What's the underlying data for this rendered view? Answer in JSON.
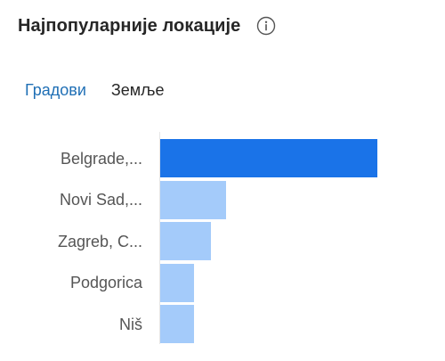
{
  "header": {
    "title": "Најпопуларније локације",
    "info_icon": "info-icon"
  },
  "tabs": [
    {
      "label": "Градови",
      "active": true
    },
    {
      "label": "Земље",
      "active": false
    }
  ],
  "colors": {
    "accent": "#1f6fb5",
    "bar_primary": "#1a73e8",
    "bar_secondary": "#a4cbfa"
  },
  "chart_data": {
    "type": "bar",
    "orientation": "horizontal",
    "categories": [
      "Belgrade,...",
      "Novi Sad,...",
      "Zagreb, C...",
      "Podgorica",
      "Niš"
    ],
    "values": [
      100,
      30.5,
      23.5,
      15.5,
      15.5
    ],
    "xlim": [
      0,
      100
    ]
  }
}
